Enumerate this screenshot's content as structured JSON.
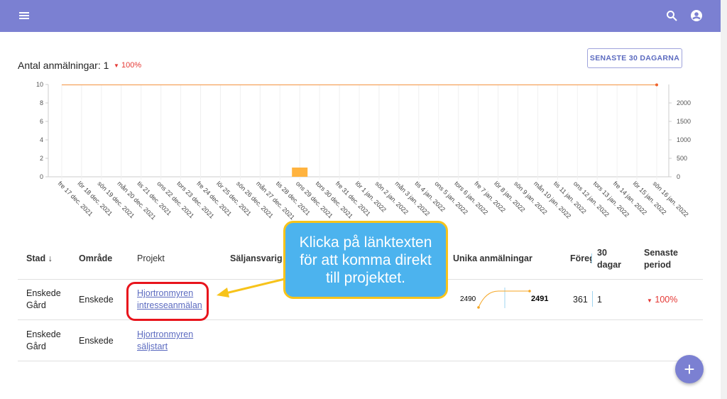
{
  "summary": {
    "label": "Antal anmälningar:",
    "count": 1,
    "change": "100%"
  },
  "button": "SENASTE 30 DAGARNA",
  "chart": {
    "type": "bar-line",
    "categories": [
      "fre 17 dec. 2021",
      "lör 18 dec. 2021",
      "sön 19 dec. 2021",
      "mån 20 dec. 2021",
      "tis 21 dec. 2021",
      "ons 22 dec. 2021",
      "tors 23 dec. 2021",
      "fre 24 dec. 2021",
      "lör 25 dec. 2021",
      "sön 26 dec. 2021",
      "mån 27 dec. 2021",
      "tis 28 dec. 2021",
      "ons 29 dec. 2021",
      "tors 30 dec. 2021",
      "fre 31 dec. 2021",
      "lör 1 jan. 2022",
      "sön 2 jan. 2022",
      "mån 3 jan. 2022",
      "tis 4 jan. 2022",
      "ons 5 jan. 2022",
      "tors 6 jan. 2022",
      "fre 7 jan. 2022",
      "lör 8 jan. 2022",
      "sön 9 jan. 2022",
      "mån 10 jan. 2022",
      "tis 11 jan. 2022",
      "ons 12 jan. 2022",
      "tors 13 jan. 2022",
      "fre 14 jan. 2022",
      "lör 15 jan. 2022",
      "sön 16 jan. 2022"
    ],
    "series": [
      {
        "type": "bar",
        "color": "#ffb33f",
        "values": [
          0,
          0,
          0,
          0,
          0,
          0,
          0,
          0,
          0,
          0,
          0,
          0,
          1,
          0,
          0,
          0,
          0,
          0,
          0,
          0,
          0,
          0,
          0,
          0,
          0,
          0,
          0,
          0,
          0,
          0,
          0
        ]
      },
      {
        "type": "line",
        "axis": "y2",
        "color": "#f5a25d",
        "values": [
          2491,
          2491,
          2491,
          2491,
          2491,
          2491,
          2491,
          2491,
          2491,
          2491,
          2491,
          2491,
          2491,
          2491,
          2491,
          2491,
          2491,
          2491,
          2491,
          2491,
          2491,
          2491,
          2491,
          2491,
          2491,
          2491,
          2491,
          2491,
          2491,
          2491,
          2491
        ]
      }
    ],
    "ylim": [
      0,
      10
    ],
    "yticks": [
      0,
      2,
      4,
      6,
      8,
      10
    ],
    "y2lim": [
      0,
      2500
    ],
    "y2ticks": [
      0,
      500,
      1000,
      1500,
      2000
    ]
  },
  "table": {
    "headers": [
      "Stad",
      "Område",
      "Projekt",
      "Säljansvarig",
      "Unika anmälningar",
      "Föreg.",
      "30 dagar",
      "Senaste period"
    ],
    "rows": [
      {
        "stad": "Enskede Gård",
        "omrade": "Enskede",
        "projekt": "Hjortronmyren intresseanmälan",
        "sparkline": [
          2490,
          2491
        ],
        "foreg": 361,
        "dagar30": 1,
        "senaste": "100%"
      },
      {
        "stad": "Enskede Gård",
        "omrade": "Enskede",
        "projekt": "Hjortronmyren säljstart"
      }
    ]
  },
  "callout": "Klicka på länktexten för att komma direkt till projektet."
}
